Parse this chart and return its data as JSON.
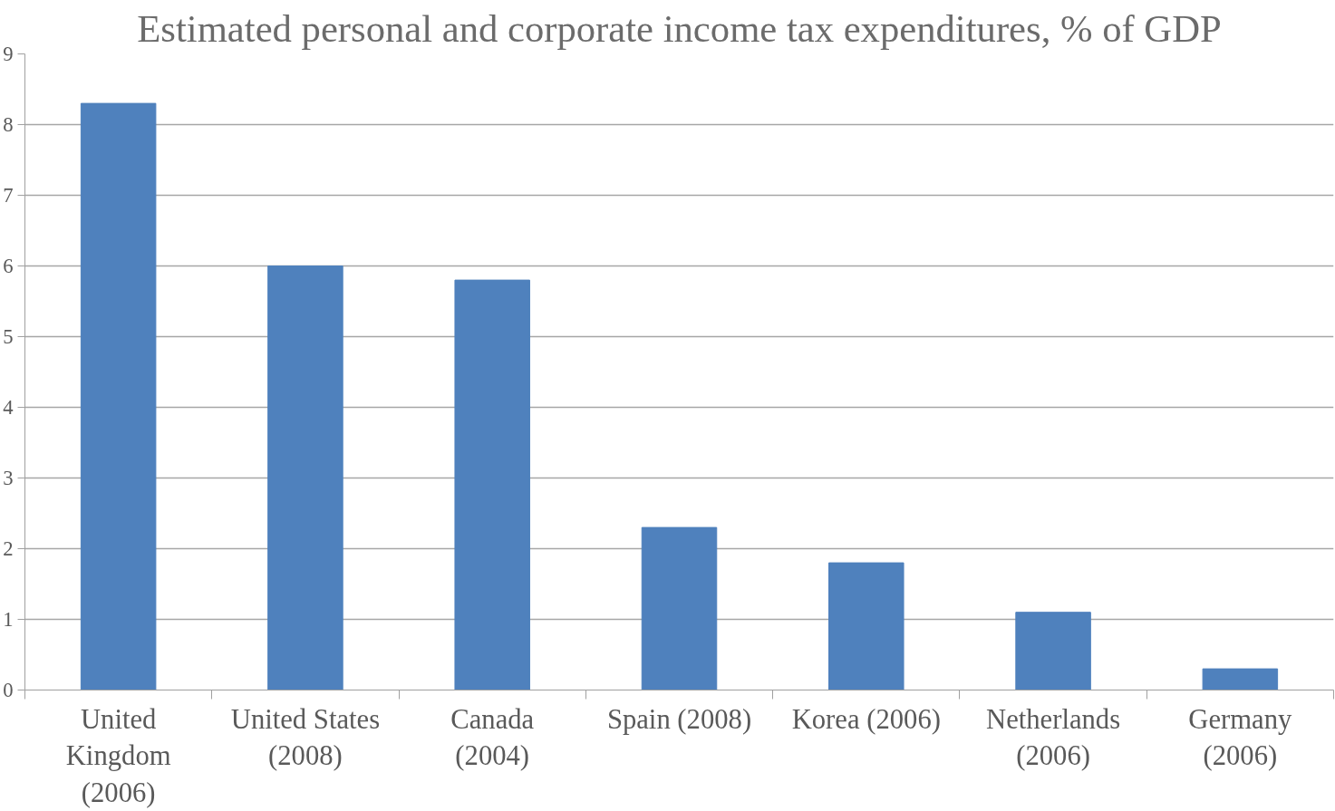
{
  "chart_data": {
    "type": "bar",
    "title": "Estimated personal and corporate income tax expenditures, % of GDP",
    "categories": [
      "United\nKingdom\n(2006)",
      "United States\n(2008)",
      "Canada\n(2004)",
      "Spain (2008)",
      "Korea (2006)",
      "Netherlands\n(2006)",
      "Germany\n(2006)"
    ],
    "values": [
      8.3,
      6.0,
      5.8,
      2.3,
      1.8,
      1.1,
      0.3
    ],
    "color": "#4f81bd",
    "ylim": [
      0,
      9
    ],
    "yticks": [
      0,
      1,
      2,
      3,
      4,
      5,
      6,
      7,
      8,
      9
    ],
    "grid": "y"
  }
}
